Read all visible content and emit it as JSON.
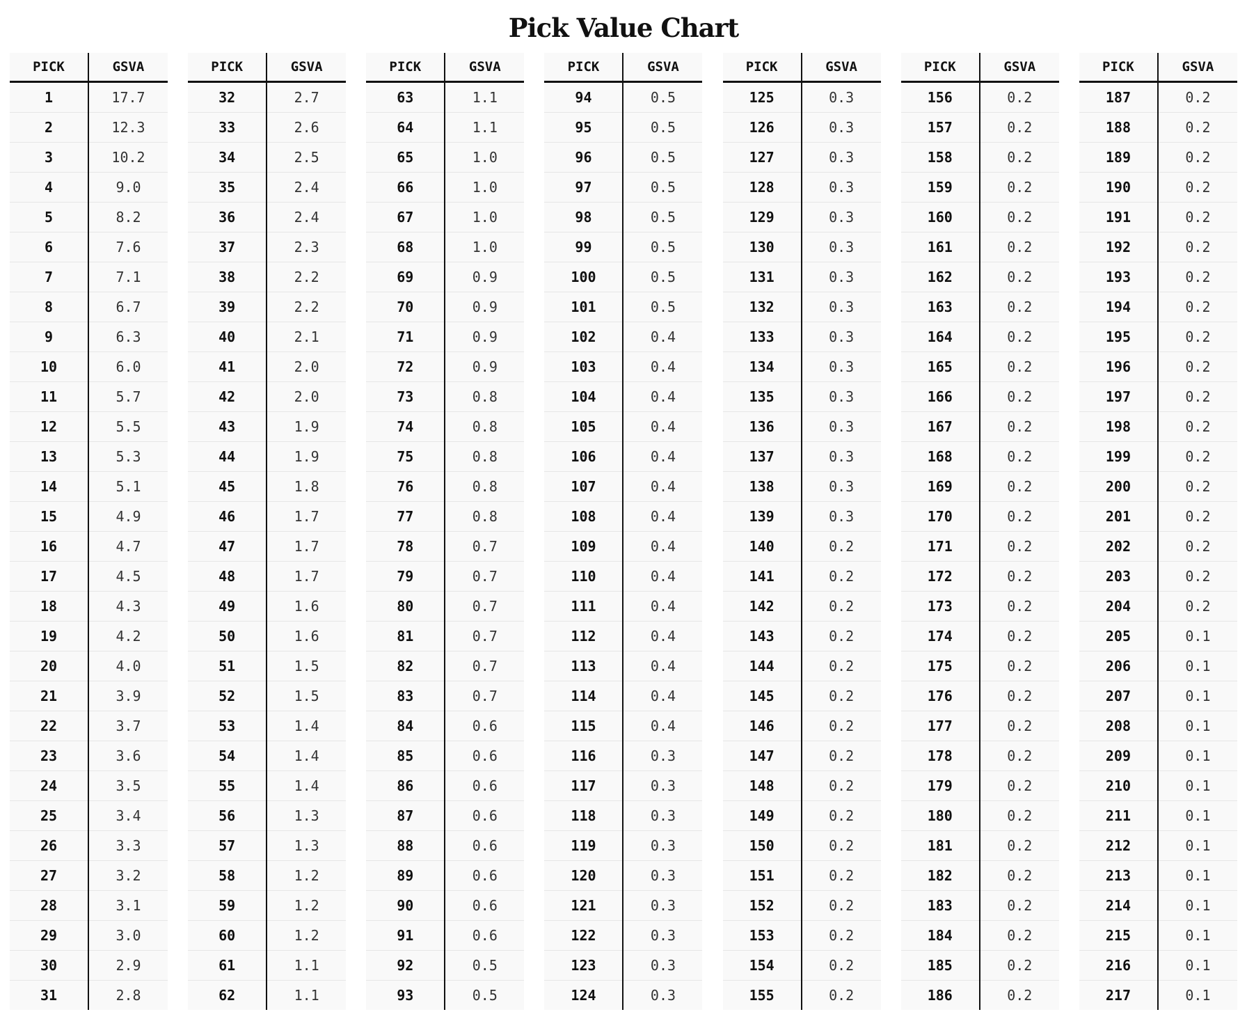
{
  "title": "Pick Value Chart",
  "headers": {
    "pick": "PICK",
    "gsva": "GSVA"
  },
  "columns": [
    {
      "rows": [
        {
          "pick": "1",
          "gsva": "17.7"
        },
        {
          "pick": "2",
          "gsva": "12.3"
        },
        {
          "pick": "3",
          "gsva": "10.2"
        },
        {
          "pick": "4",
          "gsva": "9.0"
        },
        {
          "pick": "5",
          "gsva": "8.2"
        },
        {
          "pick": "6",
          "gsva": "7.6"
        },
        {
          "pick": "7",
          "gsva": "7.1"
        },
        {
          "pick": "8",
          "gsva": "6.7"
        },
        {
          "pick": "9",
          "gsva": "6.3"
        },
        {
          "pick": "10",
          "gsva": "6.0"
        },
        {
          "pick": "11",
          "gsva": "5.7"
        },
        {
          "pick": "12",
          "gsva": "5.5"
        },
        {
          "pick": "13",
          "gsva": "5.3"
        },
        {
          "pick": "14",
          "gsva": "5.1"
        },
        {
          "pick": "15",
          "gsva": "4.9"
        },
        {
          "pick": "16",
          "gsva": "4.7"
        },
        {
          "pick": "17",
          "gsva": "4.5"
        },
        {
          "pick": "18",
          "gsva": "4.3"
        },
        {
          "pick": "19",
          "gsva": "4.2"
        },
        {
          "pick": "20",
          "gsva": "4.0"
        },
        {
          "pick": "21",
          "gsva": "3.9"
        },
        {
          "pick": "22",
          "gsva": "3.7"
        },
        {
          "pick": "23",
          "gsva": "3.6"
        },
        {
          "pick": "24",
          "gsva": "3.5"
        },
        {
          "pick": "25",
          "gsva": "3.4"
        },
        {
          "pick": "26",
          "gsva": "3.3"
        },
        {
          "pick": "27",
          "gsva": "3.2"
        },
        {
          "pick": "28",
          "gsva": "3.1"
        },
        {
          "pick": "29",
          "gsva": "3.0"
        },
        {
          "pick": "30",
          "gsva": "2.9"
        },
        {
          "pick": "31",
          "gsva": "2.8"
        }
      ]
    },
    {
      "rows": [
        {
          "pick": "32",
          "gsva": "2.7"
        },
        {
          "pick": "33",
          "gsva": "2.6"
        },
        {
          "pick": "34",
          "gsva": "2.5"
        },
        {
          "pick": "35",
          "gsva": "2.4"
        },
        {
          "pick": "36",
          "gsva": "2.4"
        },
        {
          "pick": "37",
          "gsva": "2.3"
        },
        {
          "pick": "38",
          "gsva": "2.2"
        },
        {
          "pick": "39",
          "gsva": "2.2"
        },
        {
          "pick": "40",
          "gsva": "2.1"
        },
        {
          "pick": "41",
          "gsva": "2.0"
        },
        {
          "pick": "42",
          "gsva": "2.0"
        },
        {
          "pick": "43",
          "gsva": "1.9"
        },
        {
          "pick": "44",
          "gsva": "1.9"
        },
        {
          "pick": "45",
          "gsva": "1.8"
        },
        {
          "pick": "46",
          "gsva": "1.7"
        },
        {
          "pick": "47",
          "gsva": "1.7"
        },
        {
          "pick": "48",
          "gsva": "1.7"
        },
        {
          "pick": "49",
          "gsva": "1.6"
        },
        {
          "pick": "50",
          "gsva": "1.6"
        },
        {
          "pick": "51",
          "gsva": "1.5"
        },
        {
          "pick": "52",
          "gsva": "1.5"
        },
        {
          "pick": "53",
          "gsva": "1.4"
        },
        {
          "pick": "54",
          "gsva": "1.4"
        },
        {
          "pick": "55",
          "gsva": "1.4"
        },
        {
          "pick": "56",
          "gsva": "1.3"
        },
        {
          "pick": "57",
          "gsva": "1.3"
        },
        {
          "pick": "58",
          "gsva": "1.2"
        },
        {
          "pick": "59",
          "gsva": "1.2"
        },
        {
          "pick": "60",
          "gsva": "1.2"
        },
        {
          "pick": "61",
          "gsva": "1.1"
        },
        {
          "pick": "62",
          "gsva": "1.1"
        }
      ]
    },
    {
      "rows": [
        {
          "pick": "63",
          "gsva": "1.1"
        },
        {
          "pick": "64",
          "gsva": "1.1"
        },
        {
          "pick": "65",
          "gsva": "1.0"
        },
        {
          "pick": "66",
          "gsva": "1.0"
        },
        {
          "pick": "67",
          "gsva": "1.0"
        },
        {
          "pick": "68",
          "gsva": "1.0"
        },
        {
          "pick": "69",
          "gsva": "0.9"
        },
        {
          "pick": "70",
          "gsva": "0.9"
        },
        {
          "pick": "71",
          "gsva": "0.9"
        },
        {
          "pick": "72",
          "gsva": "0.9"
        },
        {
          "pick": "73",
          "gsva": "0.8"
        },
        {
          "pick": "74",
          "gsva": "0.8"
        },
        {
          "pick": "75",
          "gsva": "0.8"
        },
        {
          "pick": "76",
          "gsva": "0.8"
        },
        {
          "pick": "77",
          "gsva": "0.8"
        },
        {
          "pick": "78",
          "gsva": "0.7"
        },
        {
          "pick": "79",
          "gsva": "0.7"
        },
        {
          "pick": "80",
          "gsva": "0.7"
        },
        {
          "pick": "81",
          "gsva": "0.7"
        },
        {
          "pick": "82",
          "gsva": "0.7"
        },
        {
          "pick": "83",
          "gsva": "0.7"
        },
        {
          "pick": "84",
          "gsva": "0.6"
        },
        {
          "pick": "85",
          "gsva": "0.6"
        },
        {
          "pick": "86",
          "gsva": "0.6"
        },
        {
          "pick": "87",
          "gsva": "0.6"
        },
        {
          "pick": "88",
          "gsva": "0.6"
        },
        {
          "pick": "89",
          "gsva": "0.6"
        },
        {
          "pick": "90",
          "gsva": "0.6"
        },
        {
          "pick": "91",
          "gsva": "0.6"
        },
        {
          "pick": "92",
          "gsva": "0.5"
        },
        {
          "pick": "93",
          "gsva": "0.5"
        }
      ]
    },
    {
      "rows": [
        {
          "pick": "94",
          "gsva": "0.5"
        },
        {
          "pick": "95",
          "gsva": "0.5"
        },
        {
          "pick": "96",
          "gsva": "0.5"
        },
        {
          "pick": "97",
          "gsva": "0.5"
        },
        {
          "pick": "98",
          "gsva": "0.5"
        },
        {
          "pick": "99",
          "gsva": "0.5"
        },
        {
          "pick": "100",
          "gsva": "0.5"
        },
        {
          "pick": "101",
          "gsva": "0.5"
        },
        {
          "pick": "102",
          "gsva": "0.4"
        },
        {
          "pick": "103",
          "gsva": "0.4"
        },
        {
          "pick": "104",
          "gsva": "0.4"
        },
        {
          "pick": "105",
          "gsva": "0.4"
        },
        {
          "pick": "106",
          "gsva": "0.4"
        },
        {
          "pick": "107",
          "gsva": "0.4"
        },
        {
          "pick": "108",
          "gsva": "0.4"
        },
        {
          "pick": "109",
          "gsva": "0.4"
        },
        {
          "pick": "110",
          "gsva": "0.4"
        },
        {
          "pick": "111",
          "gsva": "0.4"
        },
        {
          "pick": "112",
          "gsva": "0.4"
        },
        {
          "pick": "113",
          "gsva": "0.4"
        },
        {
          "pick": "114",
          "gsva": "0.4"
        },
        {
          "pick": "115",
          "gsva": "0.4"
        },
        {
          "pick": "116",
          "gsva": "0.3"
        },
        {
          "pick": "117",
          "gsva": "0.3"
        },
        {
          "pick": "118",
          "gsva": "0.3"
        },
        {
          "pick": "119",
          "gsva": "0.3"
        },
        {
          "pick": "120",
          "gsva": "0.3"
        },
        {
          "pick": "121",
          "gsva": "0.3"
        },
        {
          "pick": "122",
          "gsva": "0.3"
        },
        {
          "pick": "123",
          "gsva": "0.3"
        },
        {
          "pick": "124",
          "gsva": "0.3"
        }
      ]
    },
    {
      "rows": [
        {
          "pick": "125",
          "gsva": "0.3"
        },
        {
          "pick": "126",
          "gsva": "0.3"
        },
        {
          "pick": "127",
          "gsva": "0.3"
        },
        {
          "pick": "128",
          "gsva": "0.3"
        },
        {
          "pick": "129",
          "gsva": "0.3"
        },
        {
          "pick": "130",
          "gsva": "0.3"
        },
        {
          "pick": "131",
          "gsva": "0.3"
        },
        {
          "pick": "132",
          "gsva": "0.3"
        },
        {
          "pick": "133",
          "gsva": "0.3"
        },
        {
          "pick": "134",
          "gsva": "0.3"
        },
        {
          "pick": "135",
          "gsva": "0.3"
        },
        {
          "pick": "136",
          "gsva": "0.3"
        },
        {
          "pick": "137",
          "gsva": "0.3"
        },
        {
          "pick": "138",
          "gsva": "0.3"
        },
        {
          "pick": "139",
          "gsva": "0.3"
        },
        {
          "pick": "140",
          "gsva": "0.2"
        },
        {
          "pick": "141",
          "gsva": "0.2"
        },
        {
          "pick": "142",
          "gsva": "0.2"
        },
        {
          "pick": "143",
          "gsva": "0.2"
        },
        {
          "pick": "144",
          "gsva": "0.2"
        },
        {
          "pick": "145",
          "gsva": "0.2"
        },
        {
          "pick": "146",
          "gsva": "0.2"
        },
        {
          "pick": "147",
          "gsva": "0.2"
        },
        {
          "pick": "148",
          "gsva": "0.2"
        },
        {
          "pick": "149",
          "gsva": "0.2"
        },
        {
          "pick": "150",
          "gsva": "0.2"
        },
        {
          "pick": "151",
          "gsva": "0.2"
        },
        {
          "pick": "152",
          "gsva": "0.2"
        },
        {
          "pick": "153",
          "gsva": "0.2"
        },
        {
          "pick": "154",
          "gsva": "0.2"
        },
        {
          "pick": "155",
          "gsva": "0.2"
        }
      ]
    },
    {
      "rows": [
        {
          "pick": "156",
          "gsva": "0.2"
        },
        {
          "pick": "157",
          "gsva": "0.2"
        },
        {
          "pick": "158",
          "gsva": "0.2"
        },
        {
          "pick": "159",
          "gsva": "0.2"
        },
        {
          "pick": "160",
          "gsva": "0.2"
        },
        {
          "pick": "161",
          "gsva": "0.2"
        },
        {
          "pick": "162",
          "gsva": "0.2"
        },
        {
          "pick": "163",
          "gsva": "0.2"
        },
        {
          "pick": "164",
          "gsva": "0.2"
        },
        {
          "pick": "165",
          "gsva": "0.2"
        },
        {
          "pick": "166",
          "gsva": "0.2"
        },
        {
          "pick": "167",
          "gsva": "0.2"
        },
        {
          "pick": "168",
          "gsva": "0.2"
        },
        {
          "pick": "169",
          "gsva": "0.2"
        },
        {
          "pick": "170",
          "gsva": "0.2"
        },
        {
          "pick": "171",
          "gsva": "0.2"
        },
        {
          "pick": "172",
          "gsva": "0.2"
        },
        {
          "pick": "173",
          "gsva": "0.2"
        },
        {
          "pick": "174",
          "gsva": "0.2"
        },
        {
          "pick": "175",
          "gsva": "0.2"
        },
        {
          "pick": "176",
          "gsva": "0.2"
        },
        {
          "pick": "177",
          "gsva": "0.2"
        },
        {
          "pick": "178",
          "gsva": "0.2"
        },
        {
          "pick": "179",
          "gsva": "0.2"
        },
        {
          "pick": "180",
          "gsva": "0.2"
        },
        {
          "pick": "181",
          "gsva": "0.2"
        },
        {
          "pick": "182",
          "gsva": "0.2"
        },
        {
          "pick": "183",
          "gsva": "0.2"
        },
        {
          "pick": "184",
          "gsva": "0.2"
        },
        {
          "pick": "185",
          "gsva": "0.2"
        },
        {
          "pick": "186",
          "gsva": "0.2"
        }
      ]
    },
    {
      "rows": [
        {
          "pick": "187",
          "gsva": "0.2"
        },
        {
          "pick": "188",
          "gsva": "0.2"
        },
        {
          "pick": "189",
          "gsva": "0.2"
        },
        {
          "pick": "190",
          "gsva": "0.2"
        },
        {
          "pick": "191",
          "gsva": "0.2"
        },
        {
          "pick": "192",
          "gsva": "0.2"
        },
        {
          "pick": "193",
          "gsva": "0.2"
        },
        {
          "pick": "194",
          "gsva": "0.2"
        },
        {
          "pick": "195",
          "gsva": "0.2"
        },
        {
          "pick": "196",
          "gsva": "0.2"
        },
        {
          "pick": "197",
          "gsva": "0.2"
        },
        {
          "pick": "198",
          "gsva": "0.2"
        },
        {
          "pick": "199",
          "gsva": "0.2"
        },
        {
          "pick": "200",
          "gsva": "0.2"
        },
        {
          "pick": "201",
          "gsva": "0.2"
        },
        {
          "pick": "202",
          "gsva": "0.2"
        },
        {
          "pick": "203",
          "gsva": "0.2"
        },
        {
          "pick": "204",
          "gsva": "0.2"
        },
        {
          "pick": "205",
          "gsva": "0.1"
        },
        {
          "pick": "206",
          "gsva": "0.1"
        },
        {
          "pick": "207",
          "gsva": "0.1"
        },
        {
          "pick": "208",
          "gsva": "0.1"
        },
        {
          "pick": "209",
          "gsva": "0.1"
        },
        {
          "pick": "210",
          "gsva": "0.1"
        },
        {
          "pick": "211",
          "gsva": "0.1"
        },
        {
          "pick": "212",
          "gsva": "0.1"
        },
        {
          "pick": "213",
          "gsva": "0.1"
        },
        {
          "pick": "214",
          "gsva": "0.1"
        },
        {
          "pick": "215",
          "gsva": "0.1"
        },
        {
          "pick": "216",
          "gsva": "0.1"
        },
        {
          "pick": "217",
          "gsva": "0.1"
        }
      ]
    }
  ]
}
